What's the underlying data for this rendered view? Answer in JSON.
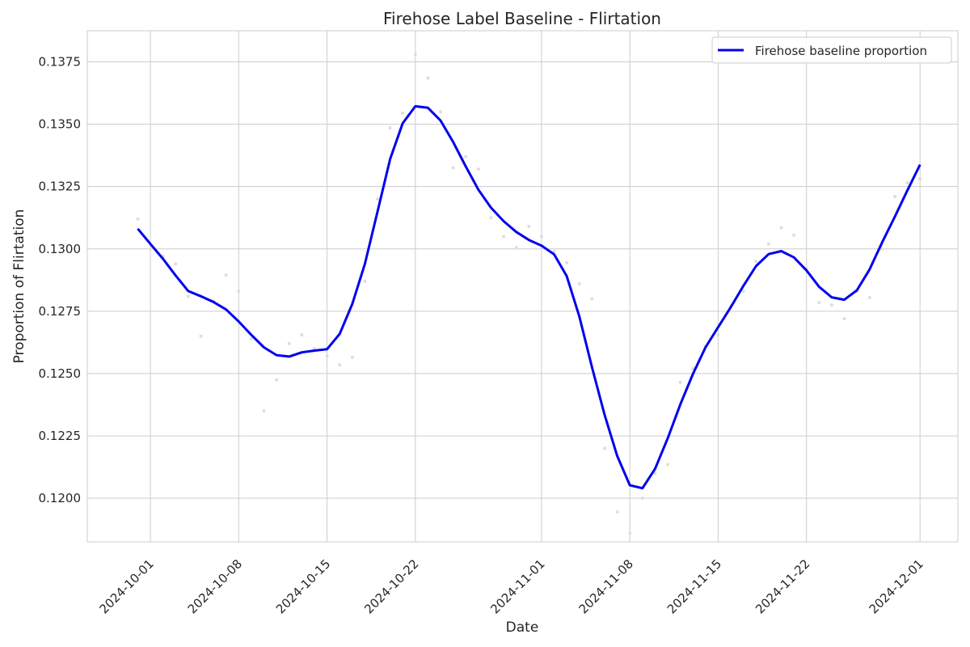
{
  "chart_data": {
    "type": "line",
    "title": "Firehose Label Baseline - Flirtation",
    "xlabel": "Date",
    "ylabel": "Proportion of Flirtation",
    "x_ticks": [
      "2024-10-01",
      "2024-10-08",
      "2024-10-15",
      "2024-10-22",
      "2024-11-01",
      "2024-11-08",
      "2024-11-15",
      "2024-11-22",
      "2024-12-01"
    ],
    "y_ticks": [
      "0.1200",
      "0.1225",
      "0.1250",
      "0.1275",
      "0.1300",
      "0.1325",
      "0.1350",
      "0.1375"
    ],
    "xlim": [
      "2024-09-26",
      "2024-12-04"
    ],
    "ylim": [
      0.11825,
      0.13875
    ],
    "grid": true,
    "legend_position": "top-right",
    "colors": {
      "line": "#0000ee",
      "scatter": "#dddddd",
      "grid": "#cccccc"
    },
    "series": [
      {
        "name": "Firehose baseline proportion",
        "style": "line",
        "x": [
          "2024-09-30",
          "2024-10-01",
          "2024-10-02",
          "2024-10-03",
          "2024-10-04",
          "2024-10-05",
          "2024-10-06",
          "2024-10-07",
          "2024-10-08",
          "2024-10-09",
          "2024-10-10",
          "2024-10-11",
          "2024-10-12",
          "2024-10-13",
          "2024-10-14",
          "2024-10-15",
          "2024-10-16",
          "2024-10-17",
          "2024-10-18",
          "2024-10-19",
          "2024-10-20",
          "2024-10-21",
          "2024-10-22",
          "2024-10-23",
          "2024-10-24",
          "2024-10-25",
          "2024-10-26",
          "2024-10-27",
          "2024-10-28",
          "2024-10-29",
          "2024-10-30",
          "2024-10-31",
          "2024-11-01",
          "2024-11-02",
          "2024-11-03",
          "2024-11-04",
          "2024-11-05",
          "2024-11-06",
          "2024-11-07",
          "2024-11-08",
          "2024-11-09",
          "2024-11-10",
          "2024-11-11",
          "2024-11-12",
          "2024-11-13",
          "2024-11-14",
          "2024-11-15",
          "2024-11-16",
          "2024-11-17",
          "2024-11-18",
          "2024-11-19",
          "2024-11-20",
          "2024-11-21",
          "2024-11-22",
          "2024-11-23",
          "2024-11-24",
          "2024-11-25",
          "2024-11-26",
          "2024-11-27",
          "2024-11-28",
          "2024-11-29",
          "2024-11-30",
          "2024-12-01"
        ],
        "y": [
          0.13081,
          0.1302,
          0.1296,
          0.12893,
          0.12831,
          0.1281,
          0.12787,
          0.12757,
          0.12709,
          0.12655,
          0.12605,
          0.12574,
          0.12568,
          0.12585,
          0.12592,
          0.12598,
          0.12659,
          0.12779,
          0.1294,
          0.13149,
          0.1336,
          0.13504,
          0.13572,
          0.13566,
          0.13515,
          0.13428,
          0.1333,
          0.13237,
          0.13165,
          0.13111,
          0.13068,
          0.13036,
          0.13013,
          0.12978,
          0.12891,
          0.12729,
          0.12526,
          0.12334,
          0.12169,
          0.12052,
          0.1204,
          0.12118,
          0.1224,
          0.12376,
          0.12498,
          0.12605,
          0.12686,
          0.12766,
          0.12852,
          0.12931,
          0.12979,
          0.12991,
          0.12966,
          0.12914,
          0.12848,
          0.12806,
          0.12796,
          0.12834,
          0.12917,
          0.13026,
          0.13129,
          0.13235,
          0.13338
        ]
      },
      {
        "style": "scatter",
        "x": [
          "2024-09-30",
          "2024-10-01",
          "2024-10-02",
          "2024-10-03",
          "2024-10-04",
          "2024-10-05",
          "2024-10-06",
          "2024-10-07",
          "2024-10-08",
          "2024-10-09",
          "2024-10-10",
          "2024-10-11",
          "2024-10-12",
          "2024-10-13",
          "2024-10-14",
          "2024-10-15",
          "2024-10-16",
          "2024-10-17",
          "2024-10-18",
          "2024-10-19",
          "2024-10-20",
          "2024-10-21",
          "2024-10-22",
          "2024-10-23",
          "2024-10-24",
          "2024-10-25",
          "2024-10-26",
          "2024-10-27",
          "2024-10-28",
          "2024-10-29",
          "2024-10-30",
          "2024-10-31",
          "2024-11-01",
          "2024-11-02",
          "2024-11-03",
          "2024-11-04",
          "2024-11-05",
          "2024-11-06",
          "2024-11-07",
          "2024-11-08",
          "2024-11-09",
          "2024-11-10",
          "2024-11-11",
          "2024-11-12",
          "2024-11-13",
          "2024-11-14",
          "2024-11-15",
          "2024-11-16",
          "2024-11-17",
          "2024-11-18",
          "2024-11-19",
          "2024-11-20",
          "2024-11-21",
          "2024-11-22",
          "2024-11-23",
          "2024-11-24",
          "2024-11-25",
          "2024-11-26",
          "2024-11-27",
          "2024-11-28",
          "2024-11-29",
          "2024-11-30",
          "2024-12-01"
        ],
        "y": [
          0.1312,
          0.13,
          0.1297,
          0.1294,
          0.1281,
          0.1265,
          0.1279,
          0.12895,
          0.1283,
          0.1264,
          0.1235,
          0.12475,
          0.1262,
          0.12655,
          0.126,
          0.1257,
          0.12535,
          0.12565,
          0.1287,
          0.132,
          0.13485,
          0.13545,
          0.1378,
          0.13685,
          0.1355,
          0.13325,
          0.1337,
          0.1332,
          0.13125,
          0.1305,
          0.13005,
          0.1309,
          0.1305,
          0.1299,
          0.12945,
          0.1286,
          0.128,
          0.122,
          0.11945,
          0.1186,
          0.12,
          0.121,
          0.12135,
          0.12465,
          0.1252,
          0.1261,
          0.12655,
          0.1277,
          0.1283,
          0.1295,
          0.1302,
          0.13085,
          0.13055,
          0.1292,
          0.12785,
          0.12775,
          0.1272,
          0.1283,
          0.12805,
          0.13,
          0.1321,
          0.13265,
          0.1328
        ]
      }
    ]
  }
}
